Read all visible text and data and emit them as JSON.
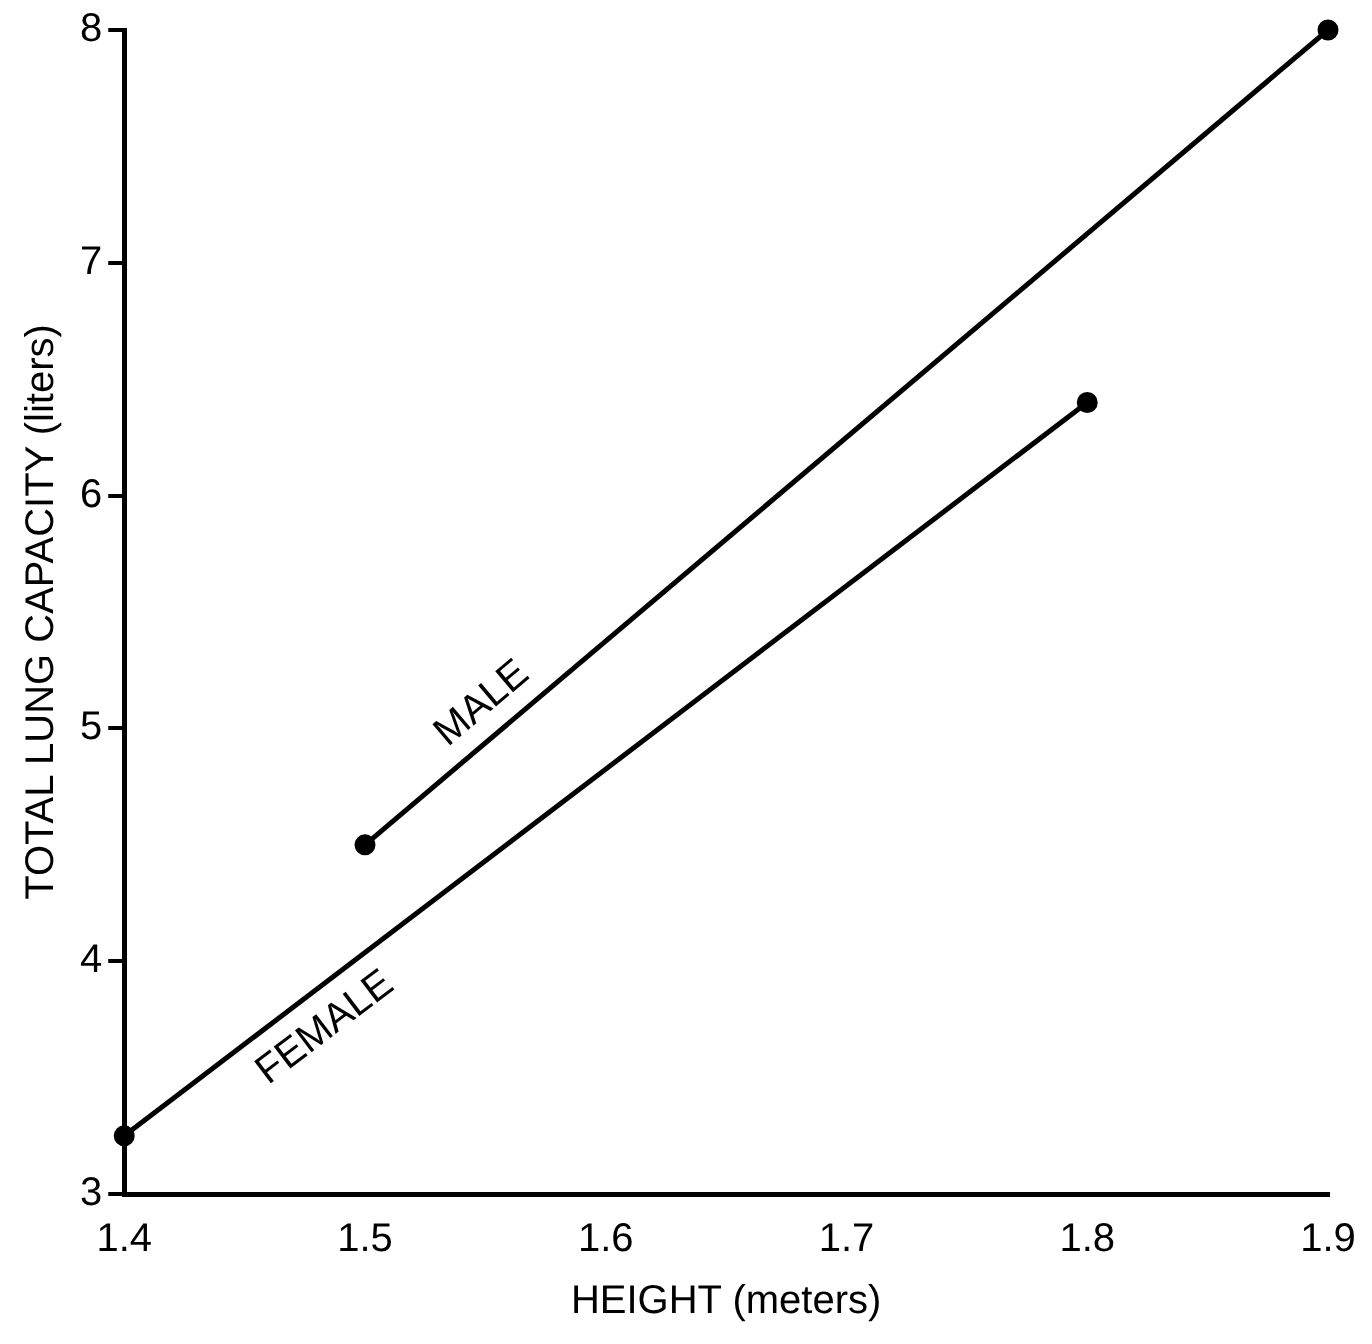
{
  "chart_data": {
    "type": "line",
    "xlabel": "HEIGHT (meters)",
    "ylabel": "TOTAL LUNG CAPACITY (liters)",
    "xlim": [
      1.4,
      1.9
    ],
    "xticks": [
      1.4,
      1.5,
      1.6,
      1.7,
      1.8,
      1.9
    ],
    "ylim": [
      3,
      8
    ],
    "yticks": [
      3,
      4,
      5,
      6,
      7,
      8
    ],
    "grid": false,
    "legend": false,
    "marker": "circle",
    "line_style": "solid",
    "series": [
      {
        "name": "MALE",
        "color": "#000000",
        "x": [
          1.5,
          1.9
        ],
        "values": [
          4.5,
          8.0
        ]
      },
      {
        "name": "FEMALE",
        "color": "#000000",
        "x": [
          1.4,
          1.8
        ],
        "values": [
          3.25,
          6.4
        ]
      }
    ]
  }
}
